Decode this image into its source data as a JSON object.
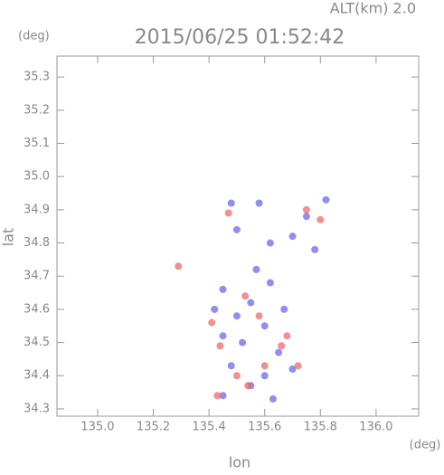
{
  "chart_data": {
    "type": "scatter",
    "title": "2015/06/25 01:52:42",
    "subtitle": "ALT(km) 2.0",
    "y_unit": "(deg)",
    "x_unit": "(deg)",
    "xlabel": "lon",
    "ylabel": "lat",
    "xlim": [
      134.854,
      136.153
    ],
    "ylim": [
      34.278,
      35.363
    ],
    "xticks": [
      {
        "value": 135.0,
        "label": "135.0"
      },
      {
        "value": 135.2,
        "label": "135.2"
      },
      {
        "value": 135.4,
        "label": "135.4"
      },
      {
        "value": 135.6,
        "label": "135.6"
      },
      {
        "value": 135.8,
        "label": "135.8"
      },
      {
        "value": 136.0,
        "label": "136.0"
      }
    ],
    "yticks": [
      34.3,
      34.4,
      34.5,
      34.6,
      34.7,
      34.8,
      34.9,
      {
        "value": 35.0,
        "label": "35.0"
      },
      35.1,
      35.2,
      35.3
    ],
    "series": [
      {
        "color": "#6a6aee",
        "x": [
          135.55,
          135.5,
          135.6,
          135.45,
          135.62,
          135.57,
          135.52,
          135.65,
          135.7,
          135.6,
          135.48,
          135.55,
          135.45,
          135.63,
          135.48,
          135.58,
          135.82,
          135.75,
          135.62,
          135.5,
          135.78,
          135.7,
          135.42,
          135.67,
          135.45
        ],
        "values": [
          34.62,
          34.58,
          34.55,
          34.66,
          34.68,
          34.72,
          34.5,
          34.47,
          34.42,
          34.4,
          34.43,
          34.37,
          34.34,
          34.33,
          34.92,
          34.92,
          34.93,
          34.88,
          34.8,
          34.84,
          34.78,
          34.82,
          34.6,
          34.6,
          34.52
        ]
      },
      {
        "color": "#ee6a6a",
        "x": [
          135.29,
          135.53,
          135.58,
          135.66,
          135.72,
          135.43,
          135.54,
          135.41,
          135.75,
          135.8,
          135.47,
          135.6,
          135.68,
          135.5,
          135.44
        ],
        "values": [
          34.73,
          34.64,
          34.58,
          34.49,
          34.43,
          34.34,
          34.37,
          34.56,
          34.9,
          34.87,
          34.89,
          34.43,
          34.52,
          34.4,
          34.49
        ]
      }
    ]
  }
}
